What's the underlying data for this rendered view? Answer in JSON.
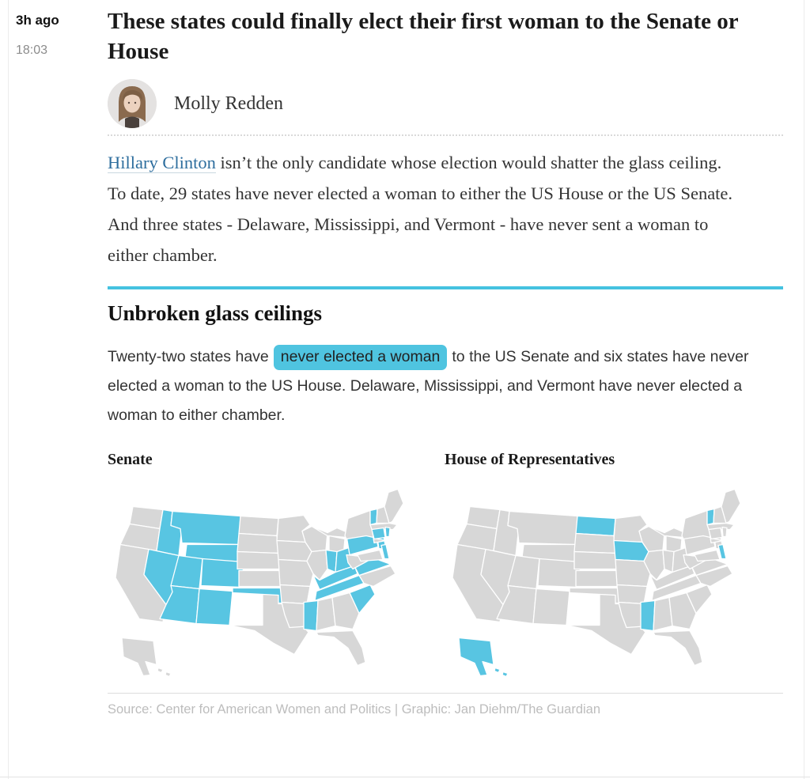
{
  "entry": {
    "time_ago": "3h ago",
    "time": "18:03",
    "title": "These states could finally elect their first woman to the Senate or House",
    "author": "Molly Redden",
    "body": {
      "link_text": "Hillary Clinton",
      "text_after_link": " isn’t the only candidate whose election would shatter the glass ceiling. To date, 29 states have never elected a woman to either the US House or the US Senate. And three states - Delaware, Mississippi, and Vermont - have never sent a woman to either chamber."
    }
  },
  "graphic": {
    "heading": "Unbroken glass ceilings",
    "intro_before": "Twenty-two states have",
    "intro_highlight": "never elected a woman",
    "intro_after": "to the US Senate and six states have never elected a woman to the US House. Delaware, Mississippi, and Vermont have never elected a woman to either chamber.",
    "maps": [
      {
        "label": "Senate",
        "type": "choropleth",
        "highlight_meaning": "states that have never elected a woman to the US Senate",
        "highlighted_states": [
          "ID",
          "MT",
          "WY",
          "NV",
          "UT",
          "CO",
          "AZ",
          "NM",
          "OK",
          "IN",
          "OH",
          "KY",
          "TN",
          "MS",
          "VA",
          "SC",
          "PA",
          "NJ",
          "DE",
          "CT",
          "RI",
          "VT"
        ]
      },
      {
        "label": "House of Representatives",
        "type": "choropleth",
        "highlight_meaning": "states that have never elected a woman to the US House",
        "highlighted_states": [
          "ND",
          "IA",
          "VT",
          "DE",
          "MS",
          "AK"
        ]
      }
    ],
    "source": "Source: Center for American Women and Politics | Graphic: Jan Diehm/The Guardian"
  },
  "colors": {
    "accent_divider": "#45c2e0",
    "text_highlight_bg": "#4fc4e0",
    "map_base": "#d7d7d7",
    "map_highlight": "#58c5e2",
    "link": "#2e6e9e"
  }
}
